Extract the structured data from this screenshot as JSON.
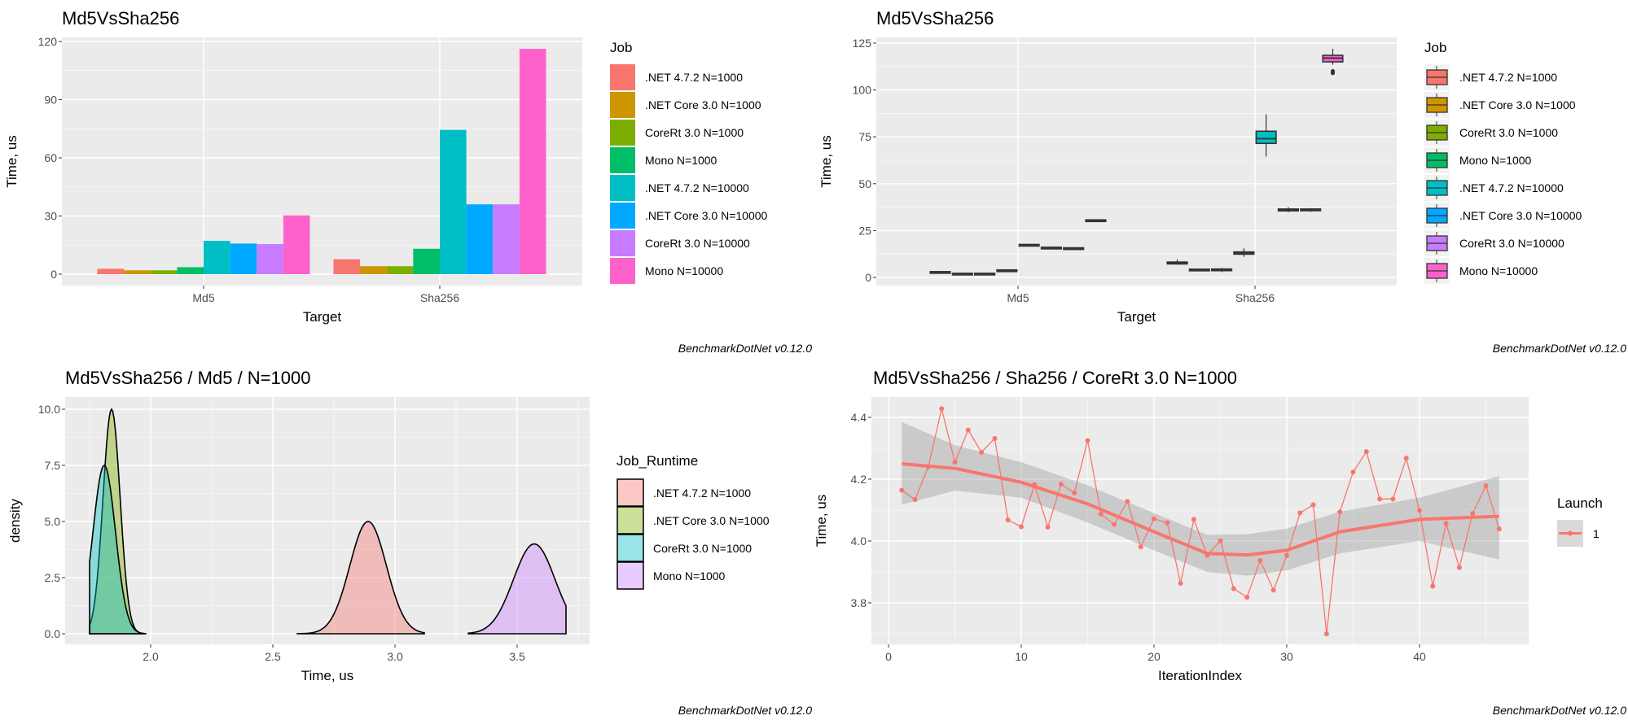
{
  "footer": "BenchmarkDotNet v0.12.0",
  "chart_data": [
    {
      "type": "bar",
      "title": "Md5VsSha256",
      "xlabel": "Target",
      "ylabel": "Time, us",
      "categories": [
        "Md5",
        "Sha256"
      ],
      "ylim": [
        0,
        120
      ],
      "yticks": [
        "0",
        "30",
        "60",
        "90",
        "120"
      ],
      "grid": true,
      "legend_title": "Job",
      "legend_position": "right",
      "series": [
        {
          "name": ".NET 4.7.2 N=1000",
          "color": "#F8766D",
          "values": [
            2.8,
            7.7
          ]
        },
        {
          "name": ".NET Core 3.0 N=1000",
          "color": "#CD9600",
          "values": [
            2.0,
            4.1
          ]
        },
        {
          "name": "CoreRt 3.0 N=1000",
          "color": "#7CAE00",
          "values": [
            2.0,
            4.1
          ]
        },
        {
          "name": "Mono N=1000",
          "color": "#00BE67",
          "values": [
            3.6,
            13.1
          ]
        },
        {
          "name": ".NET 4.7.2 N=10000",
          "color": "#00BFC4",
          "values": [
            17.2,
            74.4
          ]
        },
        {
          "name": ".NET Core 3.0 N=10000",
          "color": "#00A9FF",
          "values": [
            15.8,
            36.0
          ]
        },
        {
          "name": "CoreRt 3.0 N=10000",
          "color": "#C77CFF",
          "values": [
            15.5,
            36.0
          ]
        },
        {
          "name": "Mono N=10000",
          "color": "#FF61CC",
          "values": [
            30.3,
            116.2
          ]
        }
      ]
    },
    {
      "type": "box",
      "title": "Md5VsSha256",
      "xlabel": "Target",
      "ylabel": "Time, us",
      "categories": [
        "Md5",
        "Sha256"
      ],
      "ylim": [
        0,
        125
      ],
      "yticks": [
        "0",
        "25",
        "50",
        "75",
        "100",
        "125"
      ],
      "grid": true,
      "legend_title": "Job",
      "legend_position": "right",
      "series": [
        {
          "name": ".NET 4.7.2 N=1000",
          "color": "#F8766D",
          "boxes": [
            {
              "min": 2.4,
              "q1": 2.6,
              "median": 2.8,
              "q3": 3.1,
              "max": 3.3,
              "outliers": []
            },
            {
              "min": 6.8,
              "q1": 7.2,
              "median": 7.7,
              "q3": 8.2,
              "max": 9.6,
              "outliers": []
            }
          ]
        },
        {
          "name": ".NET Core 3.0 N=1000",
          "color": "#CD9600",
          "boxes": [
            {
              "min": 1.7,
              "q1": 1.8,
              "median": 2.0,
              "q3": 2.2,
              "max": 2.3,
              "outliers": []
            },
            {
              "min": 3.8,
              "q1": 3.9,
              "median": 4.1,
              "q3": 4.4,
              "max": 4.6,
              "outliers": []
            }
          ]
        },
        {
          "name": "CoreRt 3.0 N=1000",
          "color": "#7CAE00",
          "boxes": [
            {
              "min": 1.7,
              "q1": 1.8,
              "median": 2.0,
              "q3": 2.2,
              "max": 2.3,
              "outliers": []
            },
            {
              "min": 2.8,
              "q1": 3.6,
              "median": 4.0,
              "q3": 4.5,
              "max": 5.0,
              "outliers": []
            }
          ]
        },
        {
          "name": "Mono N=1000",
          "color": "#00BE67",
          "boxes": [
            {
              "min": 3.3,
              "q1": 3.5,
              "median": 3.7,
              "q3": 4.0,
              "max": 4.2,
              "outliers": []
            },
            {
              "min": 11.0,
              "q1": 12.4,
              "median": 13.0,
              "q3": 13.6,
              "max": 15.5,
              "outliers": []
            }
          ]
        },
        {
          "name": ".NET 4.7.2 N=10000",
          "color": "#00BFC4",
          "boxes": [
            {
              "min": 16.6,
              "q1": 16.9,
              "median": 17.2,
              "q3": 17.6,
              "max": 17.9,
              "outliers": []
            },
            {
              "min": 64.5,
              "q1": 71.5,
              "median": 74.0,
              "q3": 78.0,
              "max": 87.0,
              "outliers": []
            }
          ]
        },
        {
          "name": ".NET Core 3.0 N=10000",
          "color": "#00A9FF",
          "boxes": [
            {
              "min": 15.3,
              "q1": 15.5,
              "median": 15.8,
              "q3": 16.1,
              "max": 16.3,
              "outliers": []
            },
            {
              "min": 34.8,
              "q1": 35.5,
              "median": 36.0,
              "q3": 36.5,
              "max": 37.5,
              "outliers": []
            }
          ]
        },
        {
          "name": "CoreRt 3.0 N=10000",
          "color": "#C77CFF",
          "boxes": [
            {
              "min": 15.1,
              "q1": 15.3,
              "median": 15.5,
              "q3": 15.8,
              "max": 16.0,
              "outliers": []
            },
            {
              "min": 35.0,
              "q1": 35.6,
              "median": 36.0,
              "q3": 36.5,
              "max": 37.0,
              "outliers": []
            }
          ]
        },
        {
          "name": "Mono N=10000",
          "color": "#FF61CC",
          "boxes": [
            {
              "min": 29.5,
              "q1": 29.9,
              "median": 30.3,
              "q3": 30.7,
              "max": 31.0,
              "outliers": []
            },
            {
              "min": 113.5,
              "q1": 115.0,
              "median": 117.0,
              "q3": 118.5,
              "max": 122.0,
              "outliers": [
                109.0,
                110.0
              ]
            }
          ]
        }
      ]
    },
    {
      "type": "area",
      "title": "Md5VsSha256 / Md5 / N=1000",
      "xlabel": "Time, us",
      "ylabel": "density",
      "xlim": [
        1.75,
        3.7
      ],
      "ylim": [
        0,
        10
      ],
      "xticks": [
        "2.0",
        "2.5",
        "3.0",
        "3.5"
      ],
      "yticks": [
        "0.0",
        "2.5",
        "5.0",
        "7.5",
        "10.0"
      ],
      "grid": true,
      "legend_title": "Job_Runtime",
      "legend_position": "right",
      "series": [
        {
          "name": ".NET 4.7.2 N=1000",
          "color": "#F8766D",
          "mode": 2.89,
          "peak_density": 5.0,
          "sd": 0.075,
          "x_min": 2.6,
          "x_max": 3.12
        },
        {
          "name": ".NET Core 3.0 N=1000",
          "color": "#7CAE00",
          "mode": 1.84,
          "peak_density": 10.0,
          "sd": 0.035,
          "x_min": 1.75,
          "x_max": 1.98
        },
        {
          "name": "CoreRt 3.0 N=1000",
          "color": "#00BFC4",
          "mode": 1.81,
          "peak_density": 7.5,
          "sd": 0.046,
          "x_min": 1.75,
          "x_max": 1.97
        },
        {
          "name": "Mono N=1000",
          "color": "#C77CFF",
          "mode": 3.57,
          "peak_density": 4.0,
          "sd": 0.085,
          "x_min": 3.3,
          "x_max": 3.7
        }
      ]
    },
    {
      "type": "line",
      "title": "Md5VsSha256 / Sha256 / CoreRt 3.0 N=1000",
      "xlabel": "IterationIndex",
      "ylabel": "Time, us",
      "xlim": [
        0,
        46
      ],
      "ylim": [
        3.7,
        4.43
      ],
      "xticks": [
        "0",
        "10",
        "20",
        "30",
        "40"
      ],
      "yticks": [
        "3.8",
        "4.0",
        "4.2",
        "4.4"
      ],
      "grid": true,
      "legend_title": "Launch",
      "legend_position": "right",
      "series": [
        {
          "name": "1",
          "color": "#F8766D",
          "x": [
            1,
            2,
            3,
            4,
            5,
            6,
            7,
            8,
            9,
            10,
            11,
            12,
            13,
            14,
            15,
            16,
            17,
            18,
            19,
            20,
            21,
            22,
            23,
            24,
            25,
            26,
            27,
            28,
            29,
            30,
            31,
            32,
            33,
            34,
            35,
            36,
            37,
            38,
            39,
            40,
            41,
            42,
            43,
            44,
            45,
            46
          ],
          "values": [
            4.164,
            4.134,
            4.24,
            4.428,
            4.255,
            4.359,
            4.287,
            4.332,
            4.068,
            4.046,
            4.183,
            4.045,
            4.184,
            4.156,
            4.325,
            4.087,
            4.054,
            4.128,
            3.981,
            4.072,
            4.059,
            3.863,
            4.07,
            3.954,
            4.001,
            3.846,
            3.818,
            3.937,
            3.841,
            3.953,
            4.091,
            4.117,
            3.7,
            4.094,
            4.223,
            4.289,
            4.136,
            4.136,
            4.268,
            4.099,
            3.854,
            4.057,
            3.914,
            4.089,
            4.179,
            4.039
          ]
        }
      ],
      "smooth": {
        "x": [
          1,
          5,
          10,
          15,
          20,
          24,
          27,
          30,
          34,
          40,
          46
        ],
        "y": [
          4.25,
          4.235,
          4.19,
          4.12,
          4.03,
          3.96,
          3.955,
          3.97,
          4.03,
          4.07,
          4.08
        ],
        "lower": [
          4.118,
          4.163,
          4.14,
          4.06,
          3.97,
          3.9,
          3.888,
          3.905,
          3.96,
          4.0,
          3.94
        ],
        "upper": [
          4.385,
          4.31,
          4.255,
          4.18,
          4.09,
          4.02,
          4.022,
          4.04,
          4.095,
          4.14,
          4.21
        ]
      }
    }
  ]
}
